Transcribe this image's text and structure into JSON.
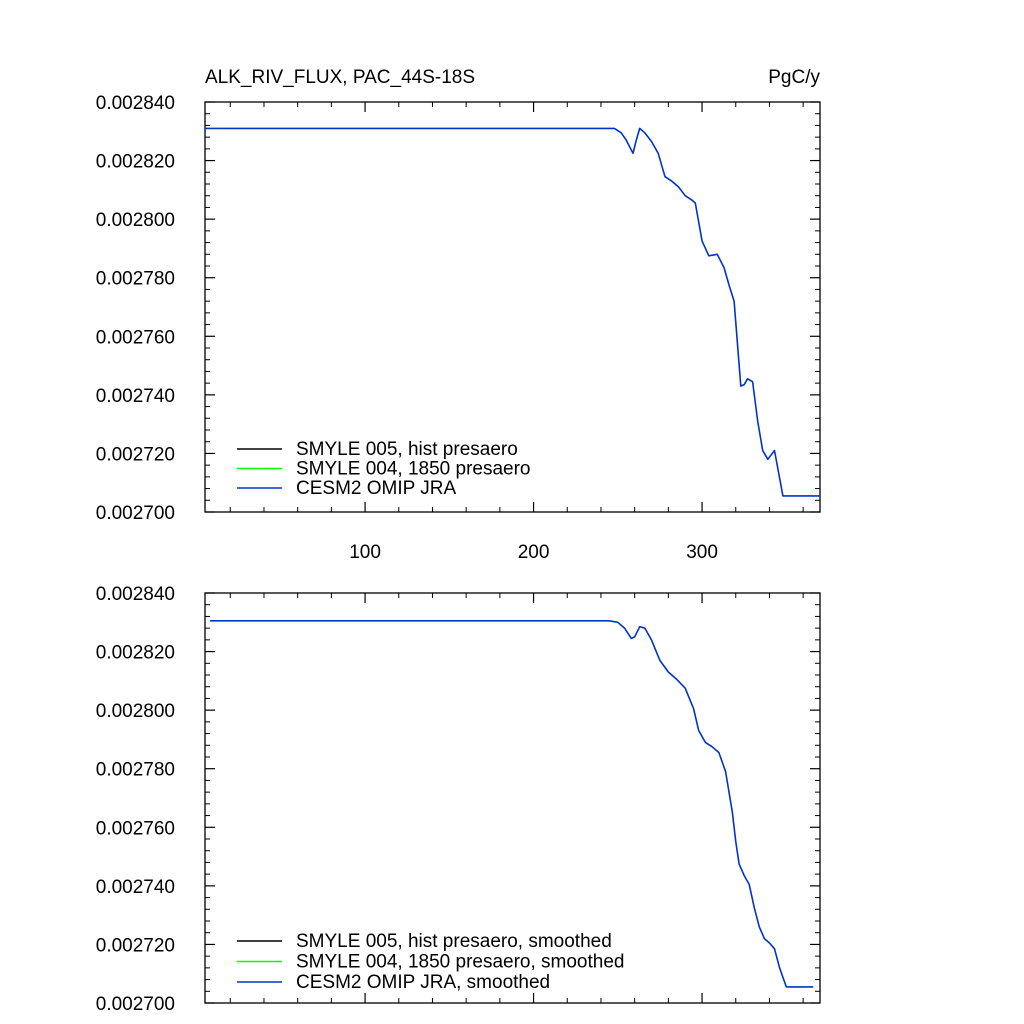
{
  "chart_data": [
    {
      "type": "line",
      "title_left": "ALK_RIV_FLUX, PAC_44S-18S",
      "title_right": "PgC/y",
      "xlim": [
        5,
        370
      ],
      "ylim": [
        0.0027,
        0.00284
      ],
      "xticks": [
        100,
        200,
        300
      ],
      "xtick_labels": [
        "100",
        "200",
        "300"
      ],
      "yticks": [
        0.0027,
        0.00272,
        0.00274,
        0.00276,
        0.00278,
        0.0028,
        0.00282,
        0.00284
      ],
      "ytick_labels": [
        "0.002700",
        "0.002720",
        "0.002740",
        "0.002760",
        "0.002780",
        "0.002800",
        "0.002820",
        "0.002840"
      ],
      "legend_position": "bottom-left",
      "series": [
        {
          "name": "SMYLE 005, hist presaero",
          "color": "#000000",
          "x": [],
          "y": []
        },
        {
          "name": "SMYLE 004, 1850 presaero",
          "color": "#00ff00",
          "x": [],
          "y": []
        },
        {
          "name": "CESM2 OMIP JRA",
          "color": "#0033cc",
          "x": [
            5,
            50,
            100,
            150,
            200,
            248,
            252,
            255,
            259,
            261,
            263,
            266,
            270,
            274,
            278,
            282,
            286,
            290,
            294,
            296,
            300,
            304,
            309,
            313,
            316,
            319,
            323,
            325,
            327,
            330,
            333,
            336,
            339,
            343,
            348,
            355,
            362,
            370
          ],
          "y": [
            0.002831,
            0.002831,
            0.002831,
            0.002831,
            0.002831,
            0.002831,
            0.0028295,
            0.002827,
            0.0028225,
            0.002827,
            0.002831,
            0.0028295,
            0.0028265,
            0.0028225,
            0.0028145,
            0.002813,
            0.002811,
            0.002808,
            0.0028065,
            0.0028055,
            0.0027925,
            0.0027875,
            0.002788,
            0.0027835,
            0.0027775,
            0.002772,
            0.002743,
            0.0027435,
            0.0027455,
            0.0027445,
            0.002731,
            0.002721,
            0.002718,
            0.002721,
            0.0027055,
            0.0027055,
            0.0027055,
            0.0027055
          ]
        }
      ]
    },
    {
      "type": "line",
      "xlim": [
        5,
        370
      ],
      "ylim": [
        0.0027,
        0.00284
      ],
      "xticks": [
        100,
        200,
        300
      ],
      "xtick_labels": [],
      "yticks": [
        0.0027,
        0.00272,
        0.00274,
        0.00276,
        0.00278,
        0.0028,
        0.00282,
        0.00284
      ],
      "ytick_labels": [
        "0.002700",
        "0.002720",
        "0.002740",
        "0.002760",
        "0.002780",
        "0.002800",
        "0.002820",
        "0.002840"
      ],
      "legend_position": "bottom-left",
      "series": [
        {
          "name": "SMYLE 005, hist presaero, smoothed",
          "color": "#000000",
          "x": [],
          "y": []
        },
        {
          "name": "SMYLE 004, 1850 presaero, smoothed",
          "color": "#00ff00",
          "x": [],
          "y": []
        },
        {
          "name": "CESM2 OMIP JRA, smoothed",
          "color": "#0033cc",
          "x": [
            8,
            50,
            100,
            150,
            200,
            245,
            250,
            254,
            258,
            260,
            263,
            266,
            270,
            275,
            280,
            285,
            290,
            295,
            298,
            302,
            306,
            310,
            314,
            318,
            320,
            322,
            325,
            328,
            331,
            334,
            337,
            340,
            343,
            346,
            350,
            355,
            362,
            366
          ],
          "y": [
            0.0028305,
            0.0028305,
            0.0028305,
            0.0028305,
            0.0028305,
            0.0028305,
            0.00283,
            0.002828,
            0.0028245,
            0.002825,
            0.0028285,
            0.002828,
            0.002824,
            0.002817,
            0.002813,
            0.0028105,
            0.0028075,
            0.0028005,
            0.002793,
            0.002789,
            0.0027875,
            0.0027855,
            0.002779,
            0.002765,
            0.002755,
            0.0027475,
            0.0027435,
            0.0027405,
            0.0027325,
            0.002726,
            0.002722,
            0.0027205,
            0.0027185,
            0.002712,
            0.0027055,
            0.0027055,
            0.0027055,
            0.0027055
          ]
        }
      ]
    }
  ]
}
